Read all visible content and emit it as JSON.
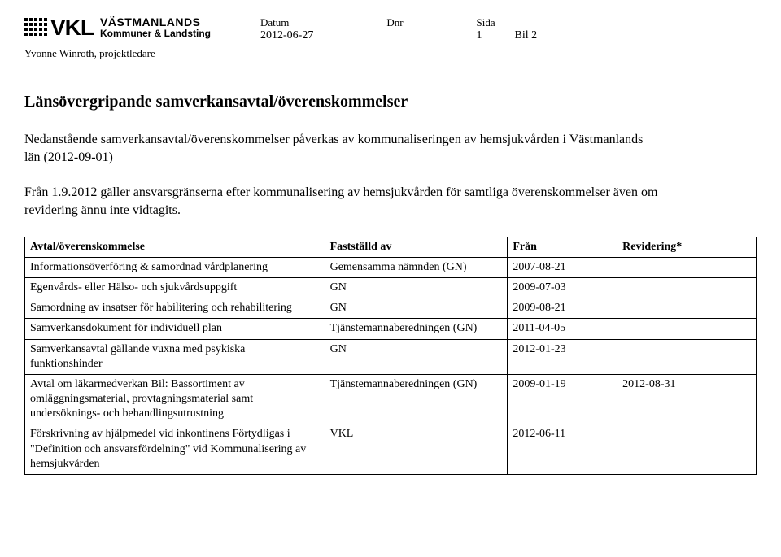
{
  "header": {
    "logo_main": "VKL",
    "logo_line1": "VÄSTMANLANDS",
    "logo_line2": "Kommuner & Landsting",
    "meta": {
      "datum_label": "Datum",
      "datum_value": "2012-06-27",
      "dnr_label": "Dnr",
      "dnr_value": "",
      "sida_label": "Sida",
      "sida_value": "1",
      "bil_value": "Bil 2"
    },
    "author": "Yvonne Winroth, projektledare"
  },
  "title": "Länsövergripande samverkansavtal/överenskommelser",
  "para1": "Nedanstående samverkansavtal/överenskommelser påverkas av kommunaliseringen av hemsjukvården i Västmanlands län (2012-09-01)",
  "para2": "Från 1.9.2012 gäller ansvarsgränserna efter kommunalisering av hemsjukvården för samtliga överenskommelser även om revidering ännu inte vidtagits.",
  "table": {
    "headers": {
      "c1": "Avtal/överenskommelse",
      "c2": "Fastställd av",
      "c3": "Från",
      "c4": "Revidering*"
    },
    "rows": [
      {
        "c1": "Informationsöverföring & samordnad vårdplanering",
        "c2": "Gemensamma nämnden (GN)",
        "c3": "2007-08-21",
        "c4": ""
      },
      {
        "c1": "Egenvårds- eller Hälso- och sjukvårdsuppgift",
        "c2": "GN",
        "c3": "2009-07-03",
        "c4": ""
      },
      {
        "c1": "Samordning av insatser för habilitering och rehabilitering",
        "c2": "GN",
        "c3": "2009-08-21",
        "c4": ""
      },
      {
        "c1": "Samverkansdokument för individuell plan",
        "c2": "Tjänstemannaberedningen (GN)",
        "c3": "2011-04-05",
        "c4": ""
      },
      {
        "c1": "Samverkansavtal gällande vuxna med psykiska funktionshinder",
        "c2": "GN",
        "c3": "2012-01-23",
        "c4": ""
      },
      {
        "c1": "Avtal om läkarmedverkan\nBil: Bassortiment av omläggningsmaterial, provtagningsmaterial\nsamt undersöknings- och behandlingsutrustning",
        "c2": "Tjänstemannaberedningen (GN)",
        "c3": "2009-01-19",
        "c4": "2012-08-31"
      },
      {
        "c1": "Förskrivning av hjälpmedel vid inkontinens\nFörtydligas i\n\"Definition och ansvarsfördelning\" vid Kommunalisering av hemsjukvården",
        "c2": "VKL",
        "c3": "2012-06-11",
        "c4": ""
      }
    ]
  }
}
